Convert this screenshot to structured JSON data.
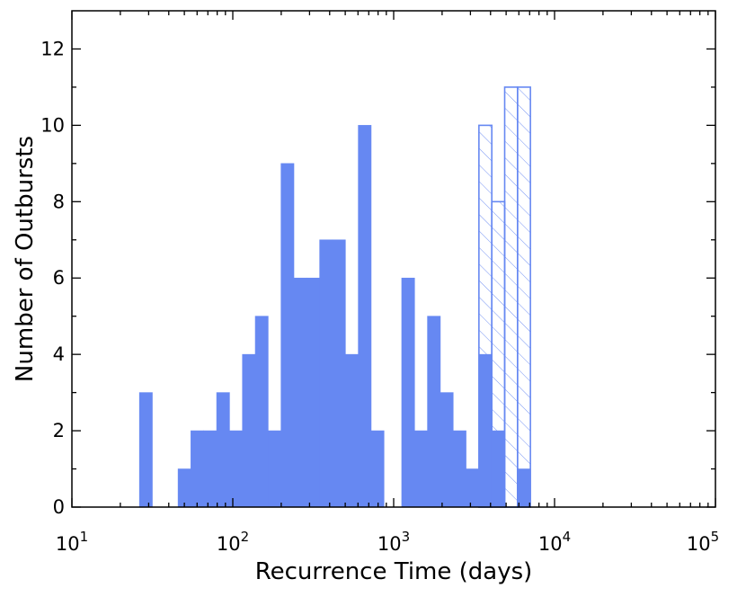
{
  "chart_data": {
    "type": "bar",
    "xlabel": "Recurrence Time (days)",
    "ylabel": "Number of Outbursts",
    "x_scale": "log",
    "xlim": [
      10,
      100000
    ],
    "ylim": [
      0,
      13
    ],
    "grid": false,
    "x_ticks": [
      {
        "value": 10,
        "base": "10",
        "exp": "1"
      },
      {
        "value": 100,
        "base": "10",
        "exp": "2"
      },
      {
        "value": 1000,
        "base": "10",
        "exp": "3"
      },
      {
        "value": 10000,
        "base": "10",
        "exp": "4"
      },
      {
        "value": 100000,
        "base": "10",
        "exp": "5"
      }
    ],
    "y_ticks": [
      "0",
      "2",
      "4",
      "6",
      "8",
      "10",
      "12"
    ],
    "bin_width_dex": 0.08,
    "bar_color": "#6688f2",
    "series": [
      {
        "style": "filled",
        "bins": [
          {
            "x0": 26.3,
            "count": 3
          },
          {
            "x0": 45.7,
            "count": 1
          },
          {
            "x0": 54.9,
            "count": 2
          },
          {
            "x0": 66.1,
            "count": 2
          },
          {
            "x0": 79.4,
            "count": 3
          },
          {
            "x0": 95.5,
            "count": 2
          },
          {
            "x0": 114.8,
            "count": 4
          },
          {
            "x0": 138.0,
            "count": 5
          },
          {
            "x0": 166.0,
            "count": 2
          },
          {
            "x0": 199.5,
            "count": 9
          },
          {
            "x0": 239.9,
            "count": 6
          },
          {
            "x0": 288.4,
            "count": 6
          },
          {
            "x0": 346.7,
            "count": 7
          },
          {
            "x0": 416.9,
            "count": 7
          },
          {
            "x0": 501.2,
            "count": 4
          },
          {
            "x0": 602.6,
            "count": 10
          },
          {
            "x0": 724.4,
            "count": 2
          },
          {
            "x0": 1122.0,
            "count": 6
          },
          {
            "x0": 1349.0,
            "count": 2
          },
          {
            "x0": 1622.0,
            "count": 5
          },
          {
            "x0": 1950.0,
            "count": 3
          },
          {
            "x0": 2344.0,
            "count": 2
          },
          {
            "x0": 2818.0,
            "count": 1
          },
          {
            "x0": 3388.0,
            "count": 4
          },
          {
            "x0": 4074.0,
            "count": 2
          },
          {
            "x0": 5888.0,
            "count": 1
          }
        ]
      },
      {
        "style": "hatched-outline",
        "bins": [
          {
            "x0": 3388.0,
            "count": 10
          },
          {
            "x0": 4074.0,
            "count": 8
          },
          {
            "x0": 4898.0,
            "count": 11
          },
          {
            "x0": 5888.0,
            "count": 11
          }
        ]
      }
    ]
  }
}
